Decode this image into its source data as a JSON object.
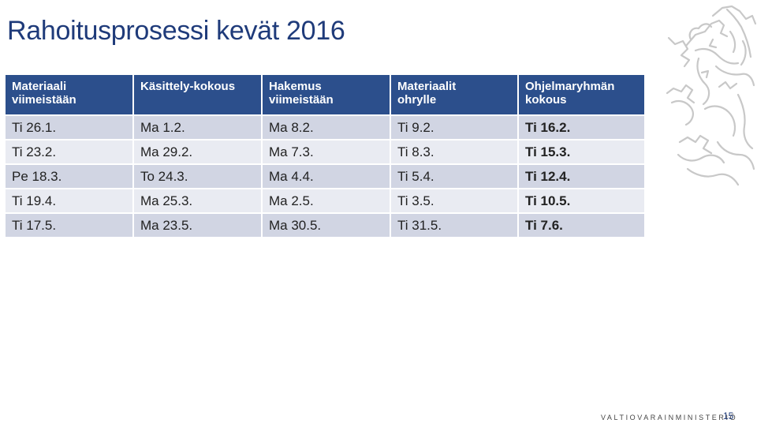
{
  "slide": {
    "title": "Rahoitusprosessi kevät 2016",
    "footer": "VALTIOVARAINMINISTERIÖ",
    "page_number": "15"
  },
  "table": {
    "headers": [
      [
        "Materiaali",
        "viimeistään"
      ],
      [
        "Käsittely-kokous",
        ""
      ],
      [
        "Hakemus",
        "viimeistään"
      ],
      [
        "Materiaalit",
        "ohrylle"
      ],
      [
        "Ohjelmaryhmän",
        "kokous"
      ]
    ],
    "rows": [
      [
        "Ti 26.1.",
        "Ma 1.2.",
        "Ma 8.2.",
        "Ti 9.2.",
        "Ti 16.2."
      ],
      [
        "Ti 23.2.",
        "Ma 29.2.",
        "Ma 7.3.",
        "Ti 8.3.",
        "Ti 15.3."
      ],
      [
        "Pe 18.3.",
        "To 24.3.",
        "Ma 4.4.",
        "Ti 5.4.",
        "Ti 12.4."
      ],
      [
        "Ti 19.4.",
        "Ma 25.3.",
        "Ma 2.5.",
        "Ti 3.5.",
        "Ti 10.5."
      ],
      [
        "Ti 17.5.",
        "Ma 23.5.",
        "Ma 30.5.",
        "Ti 31.5.",
        "Ti 7.6."
      ]
    ]
  },
  "colors": {
    "header_bg": "#2c4f8c",
    "title": "#1f3b7a",
    "row_dark": "#d1d5e3",
    "row_light": "#e9ebf2"
  },
  "icons": {
    "crest": "finnish-lion-crest-icon"
  }
}
